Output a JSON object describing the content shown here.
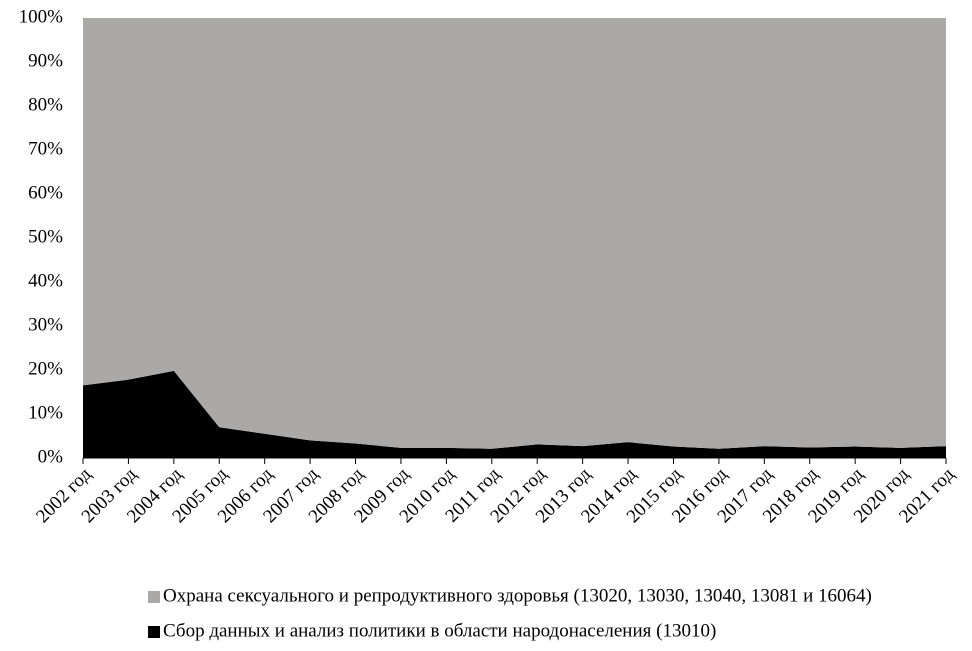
{
  "chart_data": {
    "type": "stacked_area_100",
    "categories": [
      "2002 год",
      "2003 год",
      "2004 год",
      "2005 год",
      "2006 год",
      "2007 год",
      "2008 год",
      "2009 год",
      "2010 год",
      "2011 год",
      "2012 год",
      "2013 год",
      "2014 год",
      "2015 год",
      "2016 год",
      "2017 год",
      "2018 год",
      "2019 год",
      "2020 год",
      "2021 год"
    ],
    "series": [
      {
        "name": "Охрана сексуального и репродуктивного здоровья (13020, 13030, 13040, 13081 и 16064)",
        "color": "#aba8a8",
        "values": [
          83.5,
          82.2,
          80.2,
          93,
          94.5,
          96,
          96.7,
          97.7,
          97.7,
          97.9,
          96.9,
          97.3,
          96.4,
          97.4,
          97.9,
          97.3,
          97.6,
          97.4,
          97.7,
          97.3
        ]
      },
      {
        "name": "Сбор данных и анализ политики в области народонаселения (13010)",
        "color": "#000000",
        "values": [
          16.5,
          17.8,
          19.8,
          7,
          5.5,
          4,
          3.3,
          2.3,
          2.3,
          2.1,
          3.1,
          2.7,
          3.6,
          2.6,
          2.1,
          2.7,
          2.4,
          2.6,
          2.3,
          2.7
        ]
      }
    ],
    "ylim": [
      0,
      100
    ],
    "yticks": [
      {
        "value": 0,
        "label": "0%"
      },
      {
        "value": 10,
        "label": "10%"
      },
      {
        "value": 20,
        "label": "20%"
      },
      {
        "value": 30,
        "label": "30%"
      },
      {
        "value": 40,
        "label": "40%"
      },
      {
        "value": 50,
        "label": "50%"
      },
      {
        "value": 60,
        "label": "60%"
      },
      {
        "value": 70,
        "label": "70%"
      },
      {
        "value": 80,
        "label": "80%"
      },
      {
        "value": 90,
        "label": "90%"
      },
      {
        "value": 100,
        "label": "100%"
      }
    ],
    "grid": false
  }
}
